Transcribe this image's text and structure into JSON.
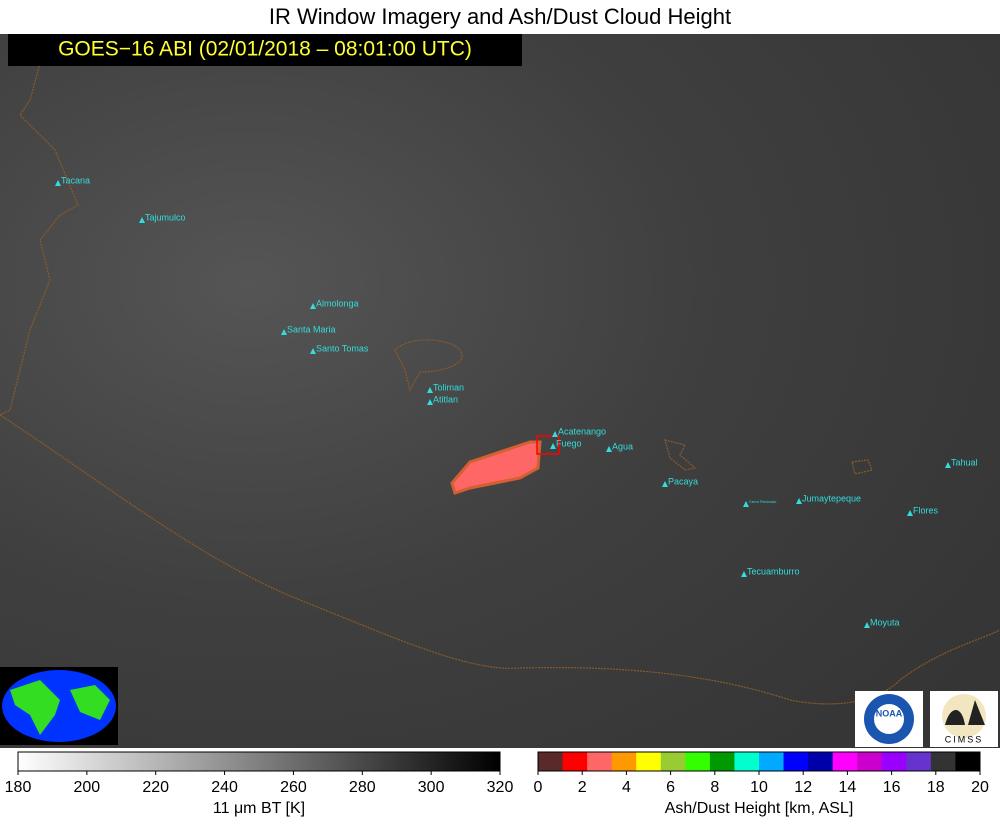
{
  "title": "IR Window Imagery and Ash/Dust Cloud Height",
  "subtitle": "GOES−16 ABI (02/01/2018 – 08:01:00 UTC)",
  "volcanoes": [
    "Tacana",
    "Tajumulco",
    "Almolonga",
    "Santa Maria",
    "Santo Tomas",
    "Toliman",
    "Atitlan",
    "Acatenango",
    "Fuego",
    "Agua",
    "Pacaya",
    "Cerro Redondo",
    "Jumaytepeque",
    "Tahual",
    "Flores",
    "Tecuamburro",
    "Moyuta"
  ],
  "colorbars": [
    {
      "label": "11 μm BT [K]",
      "lim": [
        180,
        320
      ],
      "ticks": [
        180,
        200,
        220,
        240,
        260,
        280,
        300,
        320
      ],
      "colors": [
        "#ffffff",
        "#000000"
      ]
    },
    {
      "label": "Ash/Dust Height [km, ASL]",
      "lim": [
        0,
        20
      ],
      "ticks": [
        0,
        2,
        4,
        6,
        8,
        10,
        12,
        14,
        16,
        18,
        20
      ],
      "colors": [
        "#5a2a2a",
        "#ff0000",
        "#ff6666",
        "#ff9900",
        "#ffff00",
        "#99cc33",
        "#33ff00",
        "#009900",
        "#00ffcc",
        "#00aaff",
        "#0000ff",
        "#0000aa",
        "#ff00ff",
        "#cc00cc",
        "#9900ff",
        "#6633cc",
        "#333333",
        "#000000"
      ]
    }
  ],
  "logos": [
    "NOAA",
    "CIMSS"
  ]
}
